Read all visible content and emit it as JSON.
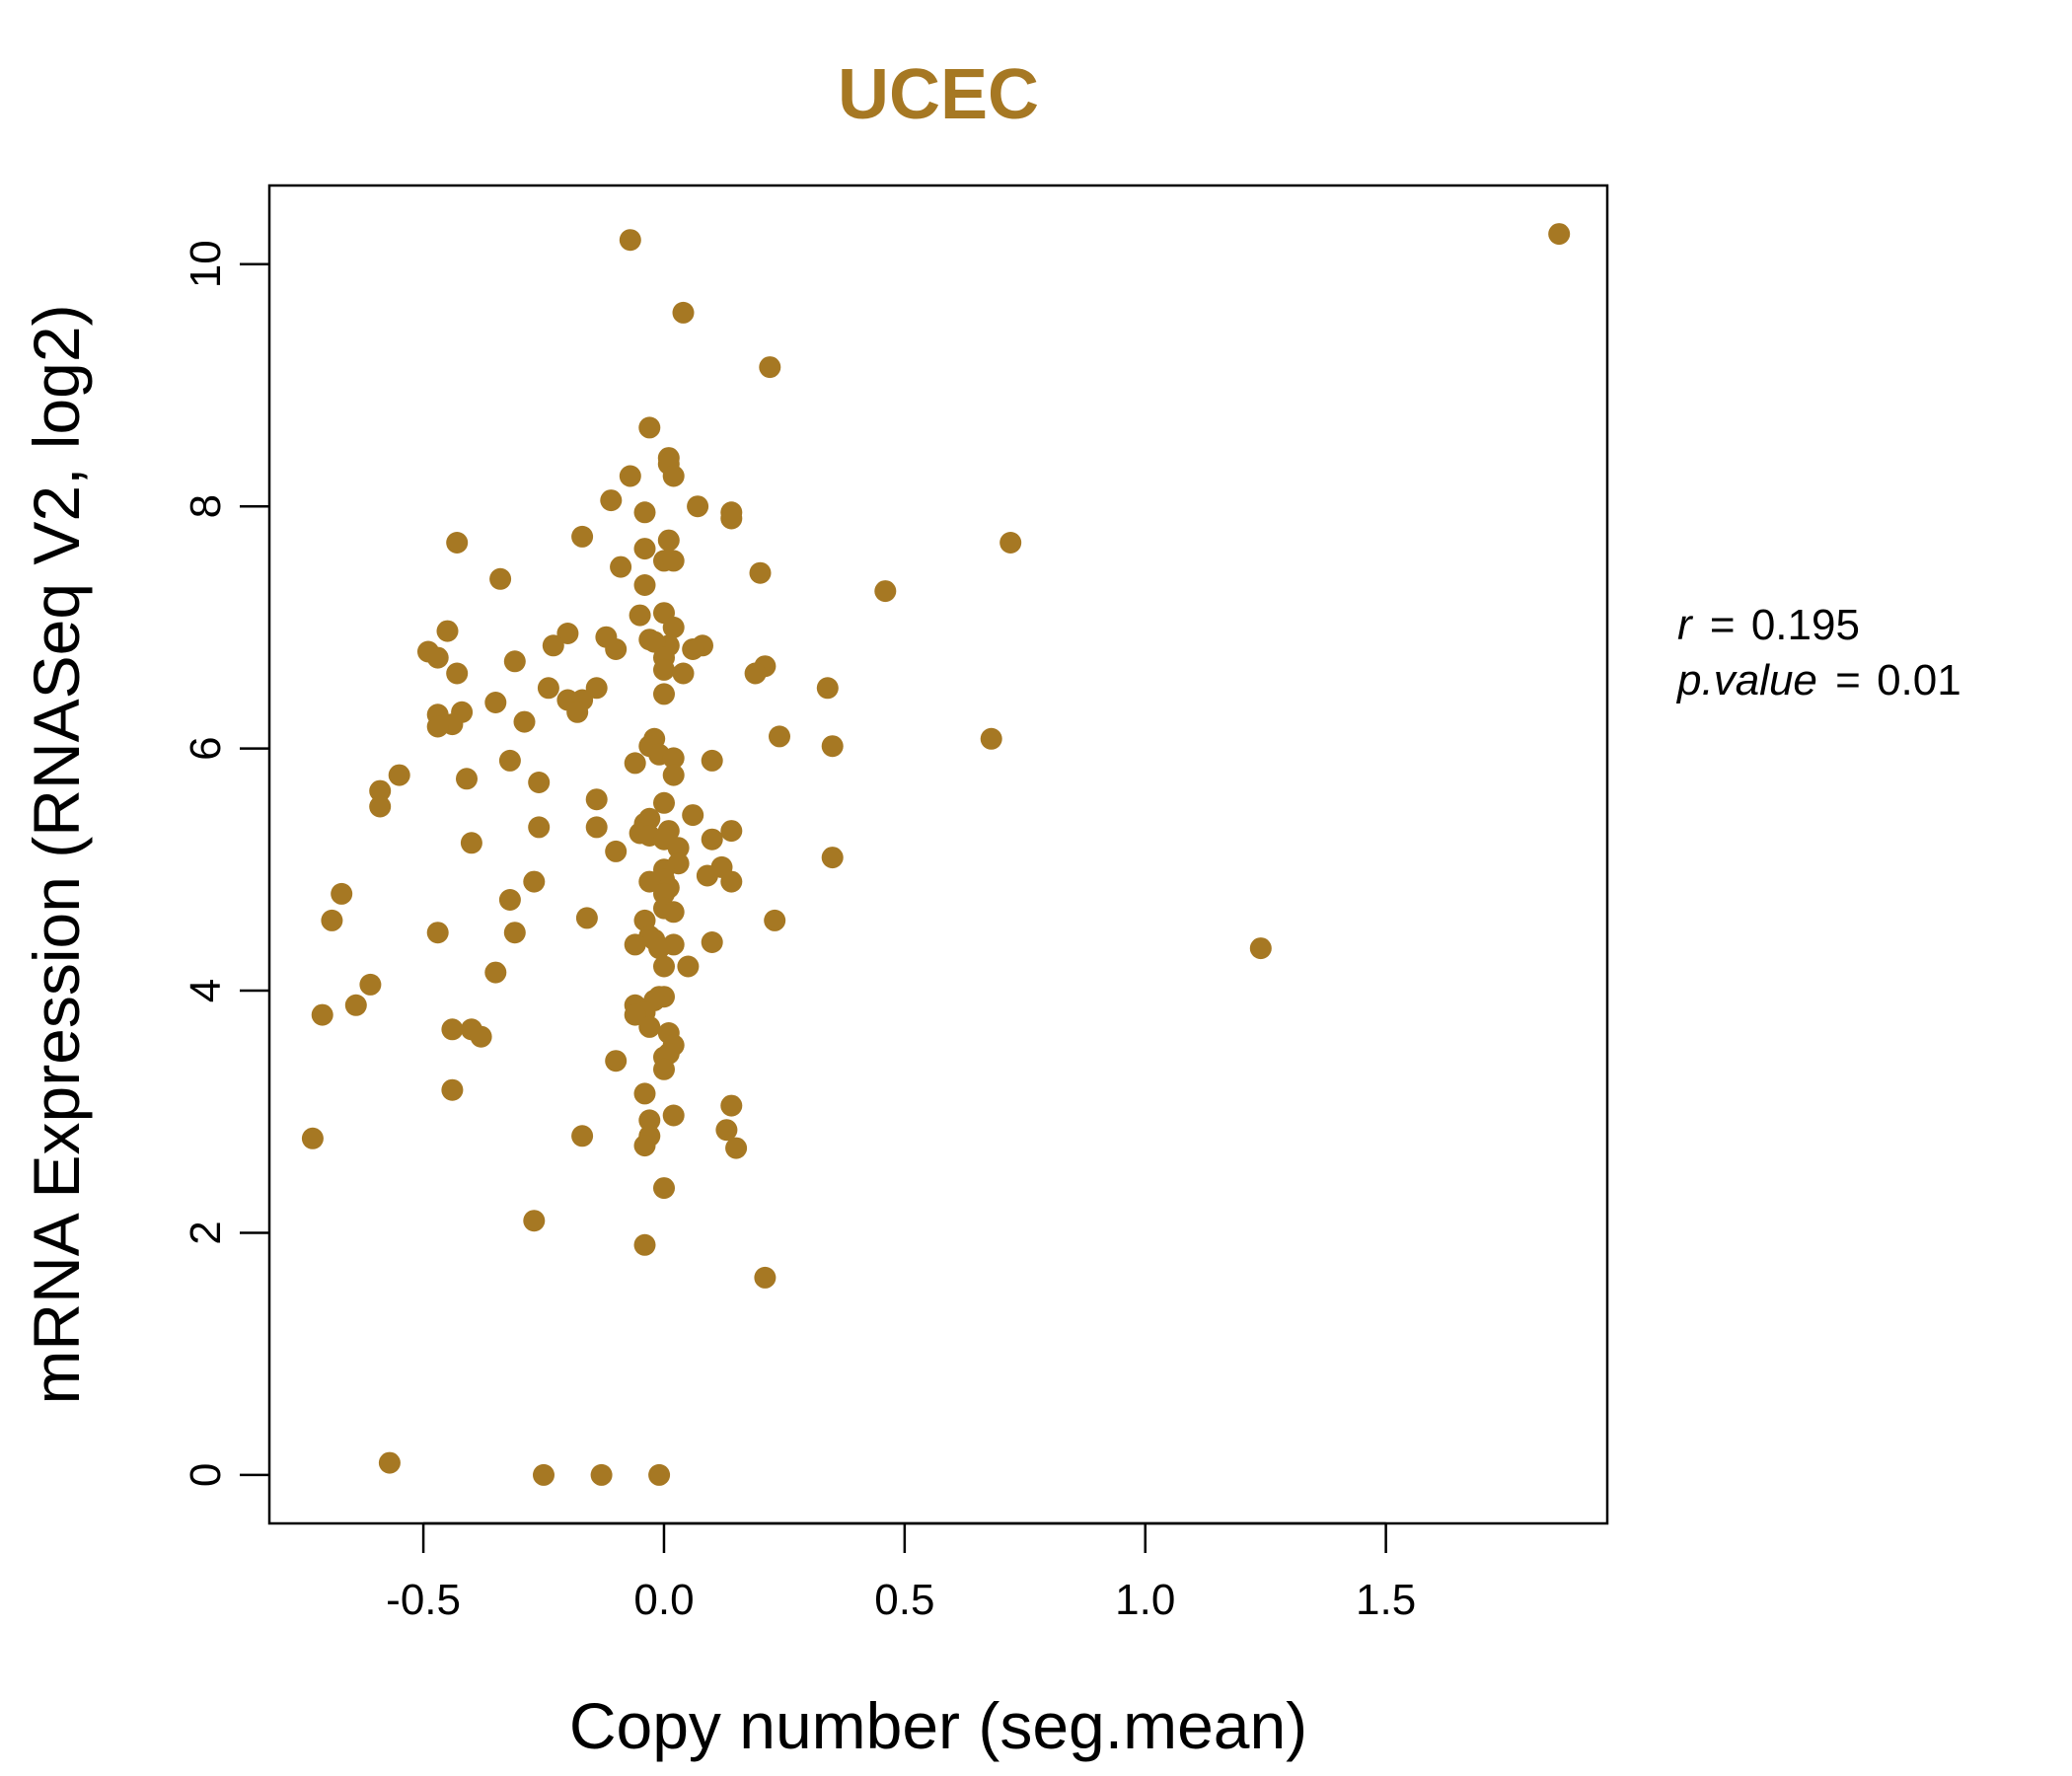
{
  "chart_data": {
    "type": "scatter",
    "title": "UCEC",
    "xlabel": "Copy number (seg.mean)",
    "ylabel": "mRNA Expression (RNASeq V2, log2)",
    "xlim": [
      -0.82,
      1.96
    ],
    "ylim": [
      -0.4,
      10.65
    ],
    "xticks": [
      -0.5,
      0.0,
      0.5,
      1.0,
      1.5
    ],
    "xtick_labels": [
      "-0.5",
      "0.0",
      "0.5",
      "1.0",
      "1.5"
    ],
    "yticks": [
      0,
      2,
      4,
      6,
      8,
      10
    ],
    "ytick_labels": [
      "0",
      "2",
      "4",
      "6",
      "8",
      "10"
    ],
    "grid": false,
    "point_color": "#a67823",
    "annotations": {
      "r_label": "r",
      "r_value": "0.195",
      "p_label": "p.value",
      "p_value": "0.01",
      "equals": "="
    },
    "points": [
      [
        1.86,
        10.25
      ],
      [
        -0.07,
        10.2
      ],
      [
        0.04,
        9.6
      ],
      [
        0.22,
        9.15
      ],
      [
        -0.03,
        8.65
      ],
      [
        0.01,
        8.4
      ],
      [
        0.01,
        8.35
      ],
      [
        -0.07,
        8.25
      ],
      [
        0.02,
        8.25
      ],
      [
        -0.11,
        8.05
      ],
      [
        0.07,
        8.0
      ],
      [
        -0.04,
        7.95
      ],
      [
        0.14,
        7.95
      ],
      [
        0.14,
        7.9
      ],
      [
        -0.17,
        7.75
      ],
      [
        -0.43,
        7.7
      ],
      [
        0.72,
        7.7
      ],
      [
        0.01,
        7.72
      ],
      [
        -0.04,
        7.65
      ],
      [
        -0.0,
        7.55
      ],
      [
        0.02,
        7.55
      ],
      [
        -0.09,
        7.5
      ],
      [
        0.2,
        7.45
      ],
      [
        -0.34,
        7.4
      ],
      [
        -0.04,
        7.35
      ],
      [
        0.46,
        7.3
      ],
      [
        0.0,
        7.12
      ],
      [
        -0.05,
        7.1
      ],
      [
        0.02,
        7.0
      ],
      [
        -0.45,
        6.97
      ],
      [
        -0.2,
        6.95
      ],
      [
        -0.12,
        6.92
      ],
      [
        -0.03,
        6.9
      ],
      [
        0.01,
        6.85
      ],
      [
        -0.02,
        6.88
      ],
      [
        -0.23,
        6.85
      ],
      [
        0.08,
        6.85
      ],
      [
        -0.1,
        6.82
      ],
      [
        0.06,
        6.82
      ],
      [
        -0.49,
        6.8
      ],
      [
        -0.47,
        6.75
      ],
      [
        0.0,
        6.75
      ],
      [
        -0.31,
        6.72
      ],
      [
        0.21,
        6.68
      ],
      [
        0.19,
        6.62
      ],
      [
        0.0,
        6.65
      ],
      [
        0.04,
        6.62
      ],
      [
        -0.43,
        6.62
      ],
      [
        0.34,
        6.5
      ],
      [
        -0.24,
        6.5
      ],
      [
        -0.14,
        6.5
      ],
      [
        0.0,
        6.45
      ],
      [
        -0.2,
        6.4
      ],
      [
        -0.17,
        6.4
      ],
      [
        -0.35,
        6.38
      ],
      [
        -0.18,
        6.3
      ],
      [
        -0.42,
        6.3
      ],
      [
        -0.47,
        6.28
      ],
      [
        -0.29,
        6.22
      ],
      [
        -0.44,
        6.2
      ],
      [
        -0.47,
        6.18
      ],
      [
        0.24,
        6.1
      ],
      [
        -0.02,
        6.08
      ],
      [
        0.68,
        6.08
      ],
      [
        0.35,
        6.02
      ],
      [
        -0.03,
        6.02
      ],
      [
        -0.01,
        5.95
      ],
      [
        0.02,
        5.92
      ],
      [
        0.1,
        5.9
      ],
      [
        -0.32,
        5.9
      ],
      [
        -0.06,
        5.88
      ],
      [
        -0.55,
        5.78
      ],
      [
        0.02,
        5.78
      ],
      [
        -0.41,
        5.75
      ],
      [
        -0.26,
        5.72
      ],
      [
        -0.59,
        5.65
      ],
      [
        -0.14,
        5.58
      ],
      [
        0.0,
        5.55
      ],
      [
        -0.59,
        5.52
      ],
      [
        0.06,
        5.45
      ],
      [
        -0.03,
        5.42
      ],
      [
        -0.04,
        5.38
      ],
      [
        -0.26,
        5.35
      ],
      [
        -0.14,
        5.35
      ],
      [
        0.01,
        5.32
      ],
      [
        0.14,
        5.32
      ],
      [
        -0.05,
        5.3
      ],
      [
        -0.03,
        5.28
      ],
      [
        0.1,
        5.25
      ],
      [
        0.0,
        5.25
      ],
      [
        -0.4,
        5.22
      ],
      [
        0.03,
        5.18
      ],
      [
        -0.1,
        5.15
      ],
      [
        0.35,
        5.1
      ],
      [
        0.03,
        5.05
      ],
      [
        0.12,
        5.02
      ],
      [
        0.0,
        5.0
      ],
      [
        0.09,
        4.95
      ],
      [
        0.0,
        4.92
      ],
      [
        -0.03,
        4.9
      ],
      [
        -0.27,
        4.9
      ],
      [
        0.14,
        4.9
      ],
      [
        0.01,
        4.85
      ],
      [
        0.0,
        4.8
      ],
      [
        -0.67,
        4.8
      ],
      [
        -0.32,
        4.75
      ],
      [
        0.0,
        4.68
      ],
      [
        0.02,
        4.65
      ],
      [
        -0.16,
        4.6
      ],
      [
        -0.04,
        4.58
      ],
      [
        0.23,
        4.58
      ],
      [
        -0.69,
        4.58
      ],
      [
        -0.47,
        4.48
      ],
      [
        -0.31,
        4.48
      ],
      [
        -0.03,
        4.45
      ],
      [
        -0.02,
        4.42
      ],
      [
        0.1,
        4.4
      ],
      [
        -0.06,
        4.38
      ],
      [
        0.02,
        4.38
      ],
      [
        -0.01,
        4.35
      ],
      [
        1.24,
        4.35
      ],
      [
        0.0,
        4.2
      ],
      [
        0.05,
        4.2
      ],
      [
        -0.35,
        4.15
      ],
      [
        -0.61,
        4.05
      ],
      [
        -0.01,
        3.95
      ],
      [
        0.0,
        3.95
      ],
      [
        -0.02,
        3.92
      ],
      [
        -0.06,
        3.88
      ],
      [
        -0.64,
        3.88
      ],
      [
        -0.04,
        3.82
      ],
      [
        -0.06,
        3.8
      ],
      [
        -0.71,
        3.8
      ],
      [
        -0.03,
        3.7
      ],
      [
        -0.44,
        3.68
      ],
      [
        -0.4,
        3.68
      ],
      [
        0.01,
        3.65
      ],
      [
        -0.38,
        3.62
      ],
      [
        0.02,
        3.55
      ],
      [
        0.01,
        3.48
      ],
      [
        0.0,
        3.45
      ],
      [
        -0.1,
        3.42
      ],
      [
        0.0,
        3.35
      ],
      [
        -0.04,
        3.15
      ],
      [
        -0.44,
        3.18
      ],
      [
        0.14,
        3.05
      ],
      [
        0.02,
        2.97
      ],
      [
        -0.03,
        2.93
      ],
      [
        0.13,
        2.85
      ],
      [
        -0.03,
        2.8
      ],
      [
        -0.17,
        2.8
      ],
      [
        -0.73,
        2.78
      ],
      [
        -0.04,
        2.72
      ],
      [
        0.15,
        2.7
      ],
      [
        0.0,
        2.37
      ],
      [
        -0.27,
        2.1
      ],
      [
        -0.04,
        1.9
      ],
      [
        0.21,
        1.63
      ],
      [
        -0.57,
        0.1
      ],
      [
        -0.25,
        0.0
      ],
      [
        -0.13,
        0.0
      ],
      [
        -0.01,
        0.0
      ]
    ]
  }
}
